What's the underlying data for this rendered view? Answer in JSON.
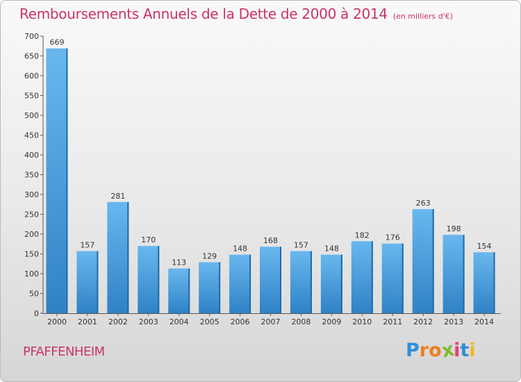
{
  "title": "Remboursements Annuels de la Dette de 2000 à 2014",
  "subtitle": "(en milliers d'€)",
  "commune": "PFAFFENHEIM",
  "logo": {
    "letters": [
      "P",
      "r",
      "o",
      "x",
      "i",
      "t",
      "i"
    ],
    "colors": [
      "#2f8fd8",
      "#f07c1e",
      "#f07c1e",
      "#7dbb2d",
      "#e93d7a",
      "#2f8fd8",
      "#f0b81e"
    ]
  },
  "colors": {
    "bar_light": "#69b7ee",
    "bar_dark": "#2f82c6",
    "bar_side": "#1f6aa8",
    "accent": "#c8336b"
  },
  "chart_data": {
    "type": "bar",
    "title": "Remboursements Annuels de la Dette de 2000 à 2014",
    "subtitle": "(en milliers d'€)",
    "categories": [
      "2000",
      "2001",
      "2002",
      "2003",
      "2004",
      "2005",
      "2006",
      "2007",
      "2008",
      "2009",
      "2010",
      "2011",
      "2012",
      "2013",
      "2014"
    ],
    "values": [
      669,
      157,
      281,
      170,
      113,
      129,
      148,
      168,
      157,
      148,
      182,
      176,
      263,
      198,
      154
    ],
    "ylim": [
      0,
      700
    ],
    "yticks": [
      0,
      50,
      100,
      150,
      200,
      250,
      300,
      350,
      400,
      450,
      500,
      550,
      600,
      650,
      700
    ],
    "grid": false,
    "xlabel": "",
    "ylabel": ""
  }
}
